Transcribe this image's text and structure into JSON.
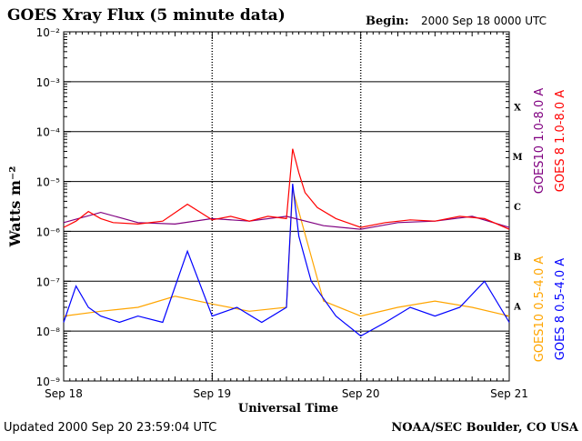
{
  "header": {
    "title": "GOES Xray Flux (5 minute data)",
    "begin_label": "Begin:",
    "begin_value": "2000 Sep 18 0000 UTC"
  },
  "footer": {
    "updated": "Updated 2000 Sep 20 23:59:04 UTC",
    "credit": "NOAA/SEC Boulder, CO USA"
  },
  "colors": {
    "goes10_long": "#800080",
    "goes8_long": "#ff0000",
    "goes10_short": "#ffa500",
    "goes8_short": "#0000ff",
    "axes": "#000000"
  },
  "chart_data": {
    "type": "line",
    "title": "GOES Xray Flux (5 minute data)",
    "xlabel": "Universal Time",
    "ylabel": "Watts m⁻²",
    "yscale": "log",
    "ylim": [
      1e-09,
      0.01
    ],
    "xlim": [
      "2000-09-18 00:00",
      "2000-09-21 00:00"
    ],
    "x_ticks": [
      "Sep 18",
      "Sep 19",
      "Sep 20",
      "Sep 21"
    ],
    "y_ticks": [
      "10⁻⁹",
      "10⁻⁸",
      "10⁻⁷",
      "10⁻⁶",
      "10⁻⁵",
      "10⁻⁴",
      "10⁻³",
      "10⁻²"
    ],
    "y_tick_exponents": [
      -9,
      -8,
      -7,
      -6,
      -5,
      -4,
      -3,
      -2
    ],
    "flare_classes": [
      "A",
      "B",
      "C",
      "M",
      "X"
    ],
    "flare_class_exponents": [
      -7.5,
      -6.5,
      -5.5,
      -4.5,
      -3.5
    ],
    "grid": "horizontal lines at each decade from 10⁻⁸ to 10⁻³",
    "legend": "right side, vertical text",
    "series": [
      {
        "name": "GOES10 1.0-8.0 A",
        "color": "#800080",
        "x": [
          "2000-09-18 00:00",
          "2000-09-18 06:00",
          "2000-09-18 12:00",
          "2000-09-18 18:00",
          "2000-09-19 00:00",
          "2000-09-19 06:00",
          "2000-09-19 12:00",
          "2000-09-19 18:00",
          "2000-09-20 00:00",
          "2000-09-20 06:00",
          "2000-09-20 12:00",
          "2000-09-20 18:00",
          "2000-09-21 00:00"
        ],
        "y": [
          1.5e-06,
          2.4e-06,
          1.5e-06,
          1.4e-06,
          1.8e-06,
          1.6e-06,
          2e-06,
          1.3e-06,
          1.1e-06,
          1.5e-06,
          1.6e-06,
          2e-06,
          1.2e-06
        ]
      },
      {
        "name": "GOES 8 1.0-8.0 A",
        "color": "#ff0000",
        "x": [
          "2000-09-18 00:00",
          "2000-09-18 02:00",
          "2000-09-18 04:00",
          "2000-09-18 06:00",
          "2000-09-18 08:00",
          "2000-09-18 12:00",
          "2000-09-18 16:00",
          "2000-09-18 20:00",
          "2000-09-19 00:00",
          "2000-09-19 03:00",
          "2000-09-19 06:00",
          "2000-09-19 09:00",
          "2000-09-19 12:00",
          "2000-09-19 13:00",
          "2000-09-19 14:00",
          "2000-09-19 15:00",
          "2000-09-19 17:00",
          "2000-09-19 20:00",
          "2000-09-20 00:00",
          "2000-09-20 04:00",
          "2000-09-20 08:00",
          "2000-09-20 12:00",
          "2000-09-20 16:00",
          "2000-09-20 20:00",
          "2000-09-21 00:00"
        ],
        "y": [
          1.2e-06,
          1.6e-06,
          2.5e-06,
          1.8e-06,
          1.5e-06,
          1.4e-06,
          1.6e-06,
          3.5e-06,
          1.7e-06,
          2e-06,
          1.6e-06,
          2e-06,
          1.8e-06,
          4.5e-05,
          1.5e-05,
          6e-06,
          3e-06,
          1.8e-06,
          1.2e-06,
          1.5e-06,
          1.7e-06,
          1.6e-06,
          2e-06,
          1.8e-06,
          1.1e-06
        ]
      },
      {
        "name": "GOES10 0.5-4.0 A",
        "color": "#ffa500",
        "x": [
          "2000-09-18 00:00",
          "2000-09-18 06:00",
          "2000-09-18 12:00",
          "2000-09-18 18:00",
          "2000-09-19 00:00",
          "2000-09-19 06:00",
          "2000-09-19 12:00",
          "2000-09-19 13:00",
          "2000-09-19 18:00",
          "2000-09-20 00:00",
          "2000-09-20 06:00",
          "2000-09-20 12:00",
          "2000-09-20 18:00",
          "2000-09-21 00:00"
        ],
        "y": [
          2e-08,
          2.5e-08,
          3e-08,
          5e-08,
          3.5e-08,
          2.5e-08,
          3e-08,
          7e-06,
          4e-08,
          2e-08,
          3e-08,
          4e-08,
          3e-08,
          2e-08
        ]
      },
      {
        "name": "GOES 8 0.5-4.0 A",
        "color": "#0000ff",
        "x": [
          "2000-09-18 00:00",
          "2000-09-18 02:00",
          "2000-09-18 04:00",
          "2000-09-18 06:00",
          "2000-09-18 09:00",
          "2000-09-18 12:00",
          "2000-09-18 16:00",
          "2000-09-18 20:00",
          "2000-09-19 00:00",
          "2000-09-19 04:00",
          "2000-09-19 08:00",
          "2000-09-19 12:00",
          "2000-09-19 13:00",
          "2000-09-19 14:00",
          "2000-09-19 16:00",
          "2000-09-19 20:00",
          "2000-09-20 00:00",
          "2000-09-20 04:00",
          "2000-09-20 08:00",
          "2000-09-20 12:00",
          "2000-09-20 16:00",
          "2000-09-20 20:00",
          "2000-09-21 00:00"
        ],
        "y": [
          1.5e-08,
          8e-08,
          3e-08,
          2e-08,
          1.5e-08,
          2e-08,
          1.5e-08,
          4e-07,
          2e-08,
          3e-08,
          1.5e-08,
          3e-08,
          9e-06,
          8e-07,
          1e-07,
          2e-08,
          8e-09,
          1.5e-08,
          3e-08,
          2e-08,
          3e-08,
          1e-07,
          1.5e-08
        ]
      }
    ]
  }
}
